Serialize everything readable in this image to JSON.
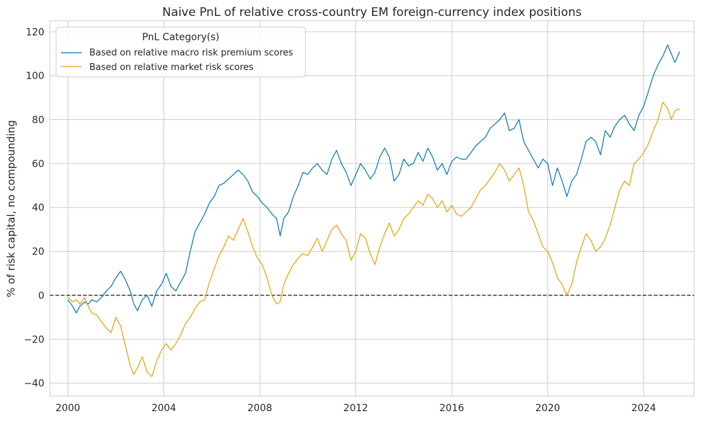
{
  "chart_data": {
    "type": "line",
    "title": "Naive PnL of relative cross-country EM foreign-currency index positions",
    "xlabel": "",
    "ylabel": "% of risk capital, no compounding",
    "xlim": [
      1999.25,
      2026.1
    ],
    "ylim": [
      -45.8,
      125
    ],
    "x_ticks": [
      2000,
      2004,
      2008,
      2012,
      2016,
      2020,
      2024
    ],
    "y_ticks": [
      -40,
      -20,
      0,
      20,
      40,
      60,
      80,
      100,
      120
    ],
    "grid": true,
    "zero_line": {
      "y": 0,
      "style": "dashed",
      "color": "#000000"
    },
    "legend": {
      "title": "PnL Category(s)",
      "placement": "top-left"
    },
    "series": [
      {
        "name": "Based on relative macro risk premium scores",
        "color": "#0072B2",
        "x": [
          2000.0,
          2000.2,
          2000.35,
          2000.5,
          2000.7,
          2000.85,
          2001.0,
          2001.2,
          2001.4,
          2001.6,
          2001.8,
          2002.0,
          2002.2,
          2002.4,
          2002.6,
          2002.75,
          2002.9,
          2003.1,
          2003.3,
          2003.5,
          2003.7,
          2003.9,
          2004.1,
          2004.3,
          2004.5,
          2004.7,
          2004.9,
          2005.1,
          2005.3,
          2005.5,
          2005.7,
          2005.9,
          2006.1,
          2006.3,
          2006.5,
          2006.7,
          2006.9,
          2007.1,
          2007.3,
          2007.5,
          2007.7,
          2007.9,
          2008.1,
          2008.3,
          2008.5,
          2008.7,
          2008.85,
          2009.0,
          2009.2,
          2009.4,
          2009.6,
          2009.8,
          2010.0,
          2010.2,
          2010.4,
          2010.6,
          2010.8,
          2011.0,
          2011.2,
          2011.4,
          2011.6,
          2011.8,
          2012.0,
          2012.2,
          2012.4,
          2012.6,
          2012.8,
          2013.0,
          2013.2,
          2013.4,
          2013.6,
          2013.8,
          2014.0,
          2014.2,
          2014.4,
          2014.6,
          2014.8,
          2015.0,
          2015.2,
          2015.4,
          2015.6,
          2015.8,
          2016.0,
          2016.2,
          2016.4,
          2016.6,
          2016.8,
          2017.0,
          2017.2,
          2017.4,
          2017.6,
          2017.8,
          2018.0,
          2018.2,
          2018.4,
          2018.6,
          2018.8,
          2019.0,
          2019.2,
          2019.4,
          2019.6,
          2019.8,
          2020.0,
          2020.2,
          2020.4,
          2020.6,
          2020.8,
          2021.0,
          2021.2,
          2021.4,
          2021.6,
          2021.8,
          2022.0,
          2022.2,
          2022.4,
          2022.6,
          2022.8,
          2023.0,
          2023.2,
          2023.4,
          2023.6,
          2023.8,
          2024.0,
          2024.2,
          2024.4,
          2024.6,
          2024.8,
          2025.0,
          2025.15,
          2025.3,
          2025.5
        ],
        "y": [
          -2,
          -5,
          -8,
          -5,
          -3,
          -4,
          -2,
          -3,
          -1,
          2,
          4,
          8,
          11,
          7,
          2,
          -4,
          -7,
          -2,
          0,
          -5,
          2,
          5,
          10,
          4,
          2,
          6,
          10,
          20,
          29,
          33,
          37,
          42,
          45,
          50,
          51,
          53,
          55,
          57,
          55,
          52,
          47,
          45,
          42,
          40,
          37,
          35,
          27,
          35,
          38,
          45,
          50,
          56,
          55,
          58,
          60,
          57,
          55,
          62,
          66,
          60,
          56,
          50,
          55,
          60,
          57,
          53,
          56,
          63,
          67,
          63,
          52,
          55,
          62,
          59,
          60,
          65,
          61,
          67,
          63,
          57,
          60,
          55,
          61,
          63,
          62,
          62,
          65,
          68,
          70,
          72,
          76,
          78,
          80,
          83,
          75,
          76,
          80,
          70,
          66,
          62,
          58,
          62,
          60,
          50,
          58,
          52,
          45,
          52,
          55,
          62,
          70,
          72,
          70,
          64,
          75,
          72,
          77,
          80,
          82,
          78,
          75,
          82,
          86,
          93,
          100,
          105,
          109,
          114,
          110,
          106,
          111
        ]
      },
      {
        "name": "Based on relative market risk scores",
        "color": "#E69F00",
        "x": [
          2000.0,
          2000.2,
          2000.35,
          2000.5,
          2000.7,
          2000.85,
          2001.0,
          2001.2,
          2001.4,
          2001.6,
          2001.8,
          2002.0,
          2002.2,
          2002.4,
          2002.6,
          2002.75,
          2002.9,
          2003.1,
          2003.3,
          2003.5,
          2003.7,
          2003.9,
          2004.1,
          2004.3,
          2004.5,
          2004.7,
          2004.9,
          2005.1,
          2005.3,
          2005.5,
          2005.7,
          2005.9,
          2006.1,
          2006.3,
          2006.5,
          2006.7,
          2006.9,
          2007.1,
          2007.3,
          2007.5,
          2007.7,
          2007.9,
          2008.1,
          2008.3,
          2008.5,
          2008.7,
          2008.85,
          2009.0,
          2009.2,
          2009.4,
          2009.6,
          2009.8,
          2010.0,
          2010.2,
          2010.4,
          2010.6,
          2010.8,
          2011.0,
          2011.2,
          2011.4,
          2011.6,
          2011.8,
          2012.0,
          2012.2,
          2012.4,
          2012.6,
          2012.8,
          2013.0,
          2013.2,
          2013.4,
          2013.6,
          2013.8,
          2014.0,
          2014.2,
          2014.4,
          2014.6,
          2014.8,
          2015.0,
          2015.2,
          2015.4,
          2015.6,
          2015.8,
          2016.0,
          2016.2,
          2016.4,
          2016.6,
          2016.8,
          2017.0,
          2017.2,
          2017.4,
          2017.6,
          2017.8,
          2018.0,
          2018.2,
          2018.4,
          2018.6,
          2018.8,
          2019.0,
          2019.2,
          2019.4,
          2019.6,
          2019.8,
          2020.0,
          2020.2,
          2020.4,
          2020.6,
          2020.8,
          2021.0,
          2021.2,
          2021.4,
          2021.6,
          2021.8,
          2022.0,
          2022.2,
          2022.4,
          2022.6,
          2022.8,
          2023.0,
          2023.2,
          2023.4,
          2023.6,
          2023.8,
          2024.0,
          2024.2,
          2024.4,
          2024.6,
          2024.8,
          2025.0,
          2025.15,
          2025.3,
          2025.5
        ],
        "y": [
          -1,
          -3,
          -2,
          -4,
          -1,
          -5,
          -8,
          -9,
          -12,
          -15,
          -17,
          -10,
          -14,
          -23,
          -32,
          -36,
          -33,
          -28,
          -35,
          -37,
          -30,
          -25,
          -22,
          -25,
          -22,
          -18,
          -13,
          -10,
          -6,
          -3,
          -2,
          6,
          12,
          18,
          22,
          27,
          25,
          30,
          35,
          29,
          22,
          17,
          14,
          8,
          0,
          -4,
          -3,
          5,
          10,
          14,
          17,
          19,
          18,
          22,
          26,
          20,
          25,
          30,
          32,
          28,
          25,
          16,
          20,
          28,
          26,
          19,
          14,
          22,
          28,
          33,
          27,
          30,
          35,
          37,
          40,
          43,
          41,
          46,
          44,
          40,
          43,
          38,
          41,
          37,
          36,
          38,
          40,
          44,
          48,
          50,
          53,
          56,
          60,
          57,
          52,
          55,
          58,
          50,
          38,
          34,
          28,
          22,
          20,
          15,
          8,
          5,
          0,
          5,
          15,
          22,
          28,
          25,
          20,
          22,
          26,
          32,
          40,
          48,
          52,
          50,
          60,
          62,
          65,
          69,
          75,
          80,
          88,
          85,
          80,
          84,
          85
        ]
      }
    ]
  }
}
